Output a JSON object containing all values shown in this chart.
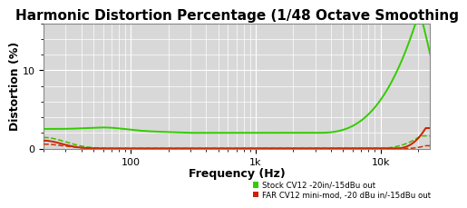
{
  "title": "Harmonic Distortion Percentage (1/48 Octave Smoothing",
  "xlabel": "Frequency (Hz)",
  "ylabel": "Distortion (%)",
  "xlim": [
    20,
    25000
  ],
  "ylim": [
    0,
    16
  ],
  "yticks": [
    0,
    10
  ],
  "xticks": [
    100,
    1000,
    10000
  ],
  "xticklabels": [
    "100",
    "1k",
    "10k"
  ],
  "legend": [
    {
      "label": "Stock CV12 -20in/-15dBu out",
      "color": "#33cc00"
    },
    {
      "label": "FAR CV12 mini-mod, -20 dBu in/-15dBu out",
      "color": "#cc2200"
    }
  ],
  "background_color": "#d8d8d8",
  "grid_color": "#ffffff",
  "title_fontsize": 11,
  "axis_label_fontsize": 9,
  "tick_fontsize": 8,
  "stock_solid_color": "#33cc00",
  "stock_dashed_color": "#44bb00",
  "mod_solid_color": "#cc2200",
  "mod_dashed_color": "#cc3300"
}
